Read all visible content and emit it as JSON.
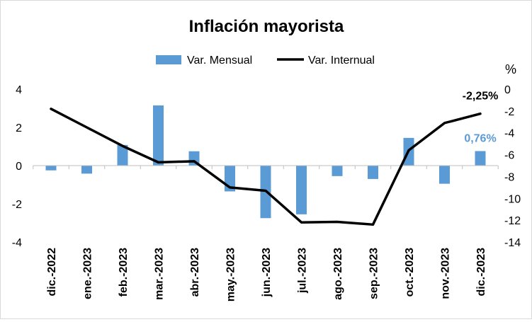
{
  "chart_data": {
    "type": "bar+line",
    "title": "Inflación mayorista",
    "legend_position": "top",
    "grid": false,
    "categories": [
      "dic.-2022",
      "ene.-2023",
      "feb.-2023",
      "mar.-2023",
      "abr.-2023",
      "may.-2023",
      "jun.-2023",
      "jul.-2023",
      "ago.-2023",
      "sep.-2023",
      "oct.-2023",
      "nov.-2023",
      "dic.-2023"
    ],
    "series": [
      {
        "name": "Var. Mensual",
        "type": "bar",
        "axis": "left",
        "color": "#5b9bd5",
        "values": [
          -0.25,
          -0.42,
          1.08,
          3.15,
          0.75,
          -1.35,
          -2.75,
          -2.55,
          -0.55,
          -0.7,
          1.45,
          -0.95,
          0.76
        ]
      },
      {
        "name": "Var. Internual",
        "type": "line",
        "axis": "right",
        "color": "#000000",
        "values": [
          -1.8,
          -3.5,
          -5.2,
          -6.7,
          -6.6,
          -9.0,
          -9.3,
          -12.2,
          -12.15,
          -12.4,
          -5.6,
          -3.1,
          -2.25
        ]
      }
    ],
    "y_left": {
      "min": -4,
      "max": 4,
      "ticks": [
        4,
        2,
        0,
        -2,
        -4
      ]
    },
    "y_right": {
      "label": "%",
      "min": -14,
      "max": 0,
      "ticks": [
        0,
        -2,
        -4,
        -6,
        -8,
        -10,
        -12,
        -14
      ]
    },
    "annotations": [
      {
        "series": "Var. Internual",
        "index": 12,
        "text": "-2,25%",
        "color": "#000000"
      },
      {
        "series": "Var. Mensual",
        "index": 12,
        "text": "0,76%",
        "color": "#5b9bd5"
      }
    ]
  }
}
